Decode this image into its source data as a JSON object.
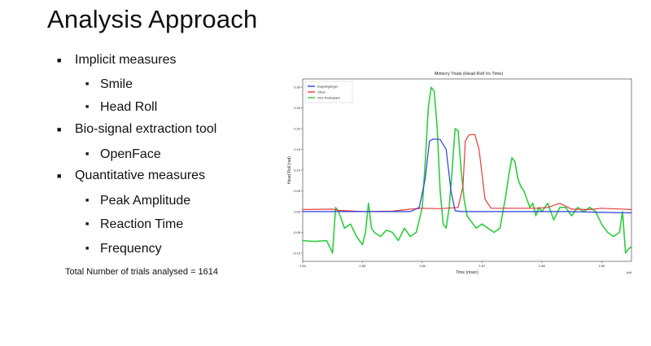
{
  "slide": {
    "title": "Analysis Approach",
    "bullets": [
      {
        "text": "Implicit measures",
        "level": 1
      },
      {
        "text": "Smile",
        "level": 2
      },
      {
        "text": "Head Roll",
        "level": 2
      },
      {
        "text": "Bio-signal extraction tool",
        "level": 1
      },
      {
        "text": "OpenFace",
        "level": 2
      },
      {
        "text": "Quantitative measures",
        "level": 1
      },
      {
        "text": "Peak Amplitude",
        "level": 2
      },
      {
        "text": "Reaction Time",
        "level": 2
      },
      {
        "text": "Frequency",
        "level": 2
      }
    ],
    "bullet_markers": {
      "level1": "■",
      "level2": "■"
    },
    "total_note": "Total Number of trials analysed = 1614"
  },
  "chart_data": {
    "type": "line",
    "title": "Mimicry Trials (Head Roll Vs Time)",
    "xlabel": "Time (msec)",
    "ylabel": "Head Roll (rad)",
    "xlim": [
      1.54,
      1.595
    ],
    "ylim": [
      -0.12,
      0.32
    ],
    "xtick_values": [
      1.54,
      1.55,
      1.56,
      1.57,
      1.58,
      1.59
    ],
    "xtick_labels": [
      "1.54",
      "1.55",
      "1.56",
      "1.57",
      "1.58",
      "1.59"
    ],
    "x_offset_label": "1e6",
    "ytick_values": [
      -0.1,
      -0.05,
      0.0,
      0.05,
      0.1,
      0.15,
      0.2,
      0.25,
      0.3
    ],
    "ytick_labels": [
      "-0.10",
      "-0.05",
      "0.00",
      "0.05",
      "0.10",
      "0.15",
      "0.20",
      "0.25",
      "0.30"
    ],
    "legend_position": "top-left",
    "series": [
      {
        "name": "Doppleganger",
        "color": "#2a3fd6",
        "x": [
          1.54,
          1.545,
          1.55,
          1.555,
          1.558,
          1.5595,
          1.5605,
          1.5612,
          1.5618,
          1.563,
          1.564,
          1.5648,
          1.5655,
          1.5665,
          1.57,
          1.575,
          1.58,
          1.585,
          1.59,
          1.595
        ],
        "y": [
          0.0,
          0.0,
          0.0,
          0.0,
          0.0,
          0.01,
          0.08,
          0.17,
          0.175,
          0.174,
          0.15,
          0.05,
          0.002,
          0.0,
          0.0,
          0.0,
          0.0,
          0.0,
          -0.002,
          -0.003
        ]
      },
      {
        "name": "Other",
        "color": "#e23c3c",
        "x": [
          1.54,
          1.545,
          1.546,
          1.55,
          1.555,
          1.558,
          1.56,
          1.563,
          1.566,
          1.5668,
          1.5672,
          1.5678,
          1.5688,
          1.5695,
          1.5705,
          1.5715,
          1.575,
          1.579,
          1.581,
          1.583,
          1.585,
          1.588,
          1.59,
          1.595
        ],
        "y": [
          0.005,
          0.006,
          0.003,
          0.0,
          0.001,
          0.006,
          0.008,
          0.007,
          0.01,
          0.06,
          0.17,
          0.185,
          0.186,
          0.15,
          0.03,
          0.008,
          0.008,
          0.008,
          0.01,
          0.02,
          0.006,
          0.005,
          0.008,
          0.005
        ]
      },
      {
        "name": "One Participant",
        "color": "#2ecc40",
        "x": [
          1.54,
          1.542,
          1.544,
          1.545,
          1.5455,
          1.546,
          1.547,
          1.548,
          1.549,
          1.55,
          1.5505,
          1.551,
          1.5515,
          1.552,
          1.553,
          1.554,
          1.555,
          1.556,
          1.557,
          1.558,
          1.559,
          1.56,
          1.5605,
          1.561,
          1.5615,
          1.562,
          1.5625,
          1.563,
          1.5635,
          1.564,
          1.5645,
          1.565,
          1.5655,
          1.566,
          1.5665,
          1.567,
          1.5675,
          1.568,
          1.5685,
          1.569,
          1.57,
          1.571,
          1.572,
          1.573,
          1.574,
          1.5745,
          1.575,
          1.5755,
          1.576,
          1.5765,
          1.577,
          1.5775,
          1.578,
          1.5785,
          1.579,
          1.5795,
          1.58,
          1.581,
          1.582,
          1.583,
          1.584,
          1.585,
          1.586,
          1.587,
          1.588,
          1.589,
          1.59,
          1.591,
          1.592,
          1.593,
          1.5935,
          1.594,
          1.5945,
          1.595
        ],
        "y": [
          -0.07,
          -0.072,
          -0.07,
          -0.1,
          0.01,
          0.0,
          -0.04,
          -0.03,
          -0.06,
          -0.08,
          -0.05,
          0.02,
          -0.04,
          -0.05,
          -0.06,
          -0.045,
          -0.05,
          -0.07,
          -0.04,
          -0.06,
          -0.05,
          0.01,
          0.12,
          0.25,
          0.3,
          0.29,
          0.2,
          0.05,
          -0.03,
          -0.04,
          0.01,
          0.1,
          0.2,
          0.195,
          0.1,
          0.03,
          -0.01,
          -0.02,
          -0.03,
          -0.04,
          -0.03,
          -0.04,
          -0.05,
          -0.04,
          0.04,
          0.09,
          0.13,
          0.12,
          0.08,
          0.06,
          0.05,
          0.03,
          0.01,
          0.02,
          -0.01,
          0.01,
          0.0,
          0.02,
          -0.02,
          0.01,
          0.01,
          -0.01,
          0.01,
          0.0,
          0.01,
          0.0,
          -0.03,
          -0.05,
          -0.06,
          -0.05,
          0.0,
          -0.1,
          -0.09,
          -0.085
        ]
      }
    ]
  }
}
